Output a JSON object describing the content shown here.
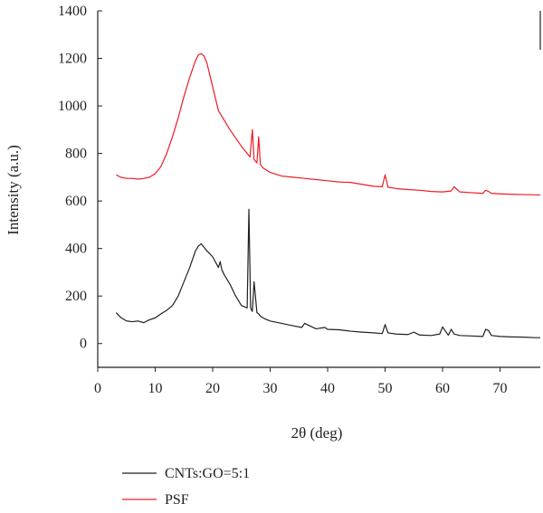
{
  "chart_data": {
    "type": "line",
    "title": "",
    "xlabel": "2θ (deg)",
    "ylabel": "Intensity (a.u.)",
    "xlim": [
      0,
      77
    ],
    "ylim": [
      -100,
      1400
    ],
    "xticks": [
      "0",
      "10",
      "20",
      "30",
      "40",
      "50",
      "60",
      "70"
    ],
    "yticks": [
      "0",
      "200",
      "400",
      "600",
      "800",
      "1000",
      "1200",
      "1400"
    ],
    "grid": false,
    "legend_position": "bottom-left",
    "series": [
      {
        "name": "CNTs:GO=5:1",
        "color": "#231f20",
        "x": [
          3.2,
          4,
          5,
          6,
          7,
          8,
          9,
          10,
          11,
          12,
          13,
          14,
          15,
          16,
          17,
          17.5,
          18,
          18.5,
          19,
          20,
          21,
          21.3,
          21.6,
          22,
          23,
          24,
          25,
          26,
          26.3,
          26.6,
          26.9,
          27.2,
          27.7,
          28,
          28.3,
          29,
          30,
          32,
          34,
          35.5,
          36,
          38,
          39.5,
          40,
          42,
          44,
          46,
          48,
          49.5,
          50,
          50.5,
          52,
          54,
          55,
          56,
          58,
          59.5,
          60,
          61,
          61.5,
          62,
          63,
          65,
          67,
          67.5,
          68,
          68.5,
          70,
          72,
          74,
          76,
          77
        ],
        "y": [
          130,
          110,
          95,
          92,
          95,
          88,
          100,
          108,
          125,
          140,
          160,
          200,
          260,
          320,
          390,
          410,
          420,
          405,
          390,
          365,
          320,
          345,
          310,
          290,
          250,
          200,
          160,
          150,
          565,
          150,
          135,
          260,
          130,
          125,
          115,
          105,
          95,
          85,
          75,
          68,
          85,
          62,
          68,
          60,
          58,
          52,
          48,
          45,
          42,
          80,
          45,
          40,
          38,
          48,
          36,
          34,
          40,
          70,
          35,
          60,
          40,
          34,
          32,
          30,
          60,
          55,
          34,
          30,
          28,
          27,
          25,
          25
        ]
      },
      {
        "name": "PSF",
        "color": "#ed1c24",
        "x": [
          3.2,
          4,
          5,
          6,
          7,
          8,
          9,
          10,
          11,
          12,
          13,
          14,
          15,
          16,
          17,
          17.5,
          18,
          18.5,
          19,
          20,
          21,
          22,
          23,
          24,
          25,
          26,
          26.5,
          26.9,
          27.2,
          27.7,
          28,
          28.3,
          28.7,
          29,
          30,
          32,
          34,
          36,
          38,
          40,
          42,
          44,
          46,
          48,
          49.5,
          50,
          50.5,
          52,
          54,
          56,
          58,
          60,
          61.5,
          62,
          63,
          65,
          67,
          67.5,
          68,
          68.5,
          70,
          72,
          74,
          76,
          77
        ],
        "y": [
          710,
          700,
          695,
          695,
          692,
          695,
          700,
          715,
          745,
          800,
          870,
          950,
          1040,
          1120,
          1190,
          1215,
          1220,
          1210,
          1180,
          1080,
          980,
          940,
          900,
          865,
          830,
          800,
          785,
          900,
          775,
          760,
          870,
          755,
          740,
          735,
          720,
          705,
          700,
          695,
          690,
          685,
          680,
          678,
          670,
          662,
          660,
          710,
          658,
          652,
          648,
          645,
          640,
          638,
          642,
          660,
          638,
          635,
          632,
          645,
          640,
          632,
          630,
          628,
          627,
          626,
          625
        ]
      }
    ]
  }
}
